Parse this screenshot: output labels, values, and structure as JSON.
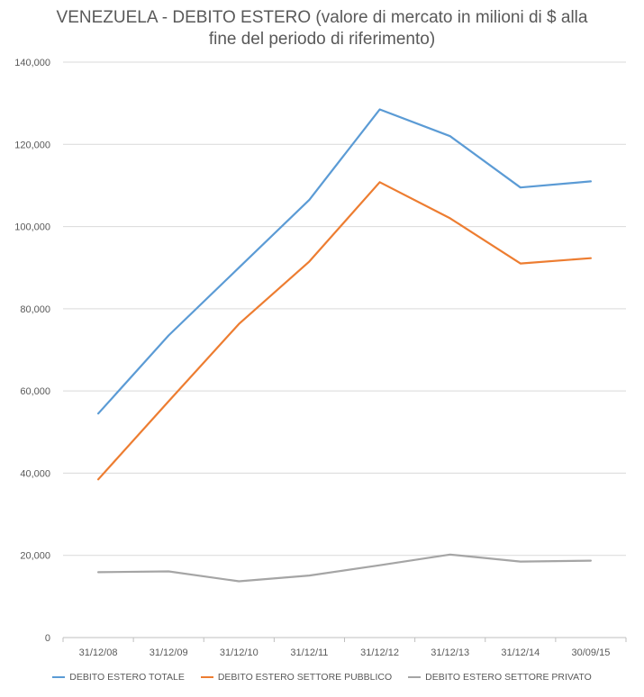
{
  "chart_data": {
    "type": "line",
    "title_line1": "VENEZUELA - DEBITO ESTERO (valore di mercato in milioni di $ alla",
    "title_line2": "fine del periodo di riferimento)",
    "categories": [
      "31/12/08",
      "31/12/09",
      "31/12/10",
      "31/12/11",
      "31/12/12",
      "31/12/13",
      "31/12/14",
      "30/09/15"
    ],
    "series": [
      {
        "name": "DEBITO ESTERO TOTALE",
        "color": "#5b9bd5",
        "values": [
          54500,
          73500,
          90000,
          106500,
          128500,
          122000,
          109500,
          111000
        ]
      },
      {
        "name": "DEBITO ESTERO SETTORE PUBBLICO",
        "color": "#ed7d31",
        "values": [
          38500,
          57500,
          76300,
          91500,
          110800,
          102000,
          91000,
          92300
        ]
      },
      {
        "name": "DEBITO ESTERO SETTORE PRIVATO",
        "color": "#a5a5a5",
        "values": [
          15900,
          16100,
          13700,
          15100,
          17600,
          20200,
          18500,
          18700
        ]
      }
    ],
    "y_ticks": [
      "0",
      "20,000",
      "40,000",
      "60,000",
      "80,000",
      "100,000",
      "120,000",
      "140,000"
    ],
    "ylim": [
      0,
      140000
    ],
    "xlabel": "",
    "ylabel": "",
    "grid": true,
    "legend_position": "bottom"
  }
}
